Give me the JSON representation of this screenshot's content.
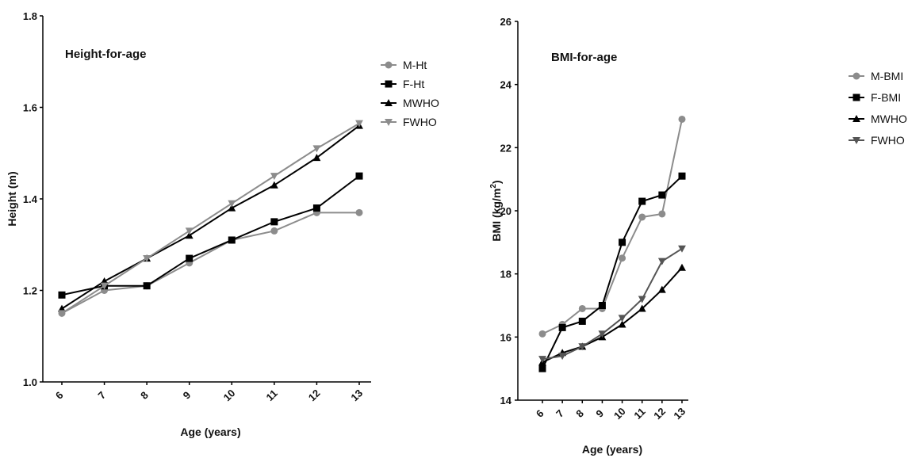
{
  "chart_data": [
    {
      "type": "line",
      "title": "Height-for-age",
      "xlabel": "Age (years)",
      "ylabel": "Height (m)",
      "ylim": [
        1.0,
        1.8
      ],
      "y_ticks": [
        "1.0",
        "1.2",
        "1.4",
        "1.6",
        "1.8"
      ],
      "categories": [
        "6",
        "7",
        "8",
        "9",
        "10",
        "11",
        "12",
        "13"
      ],
      "legend_position": "top-right",
      "series": [
        {
          "name": "M-Ht",
          "marker": "circle",
          "color": "#8c8c8c",
          "values": [
            1.15,
            1.2,
            1.21,
            1.26,
            1.31,
            1.33,
            1.37,
            1.37
          ]
        },
        {
          "name": "F-Ht",
          "marker": "square",
          "color": "#000000",
          "values": [
            1.19,
            1.21,
            1.21,
            1.27,
            1.31,
            1.35,
            1.38,
            1.45
          ]
        },
        {
          "name": "MWHO",
          "marker": "triangle-up",
          "color": "#000000",
          "values": [
            1.16,
            1.22,
            1.27,
            1.32,
            1.38,
            1.43,
            1.49,
            1.56
          ]
        },
        {
          "name": "FWHO",
          "marker": "triangle-down",
          "color": "#8c8c8c",
          "values": [
            1.15,
            1.21,
            1.27,
            1.33,
            1.39,
            1.45,
            1.51,
            1.565
          ]
        }
      ]
    },
    {
      "type": "line",
      "title": "BMI-for-age",
      "xlabel": "Age (years)",
      "ylabel": "BMI (kg/m",
      "ylabel_superscript": "2",
      "ylabel_suffix": ")",
      "ylim": [
        14,
        26
      ],
      "y_ticks": [
        "14",
        "16",
        "18",
        "20",
        "22",
        "24",
        "26"
      ],
      "categories": [
        "6",
        "7",
        "8",
        "9",
        "10",
        "11",
        "12",
        "13"
      ],
      "legend_position": "top-right",
      "series": [
        {
          "name": "M-BMI",
          "marker": "circle",
          "color": "#8c8c8c",
          "values": [
            16.1,
            16.4,
            16.9,
            16.9,
            18.5,
            19.8,
            19.9,
            22.9
          ]
        },
        {
          "name": "F-BMI",
          "marker": "square",
          "color": "#000000",
          "values": [
            15.0,
            16.3,
            16.5,
            17.0,
            19.0,
            20.3,
            20.5,
            21.1
          ]
        },
        {
          "name": "MWHO",
          "marker": "triangle-up",
          "color": "#000000",
          "values": [
            15.2,
            15.5,
            15.7,
            16.0,
            16.4,
            16.9,
            17.5,
            18.2
          ]
        },
        {
          "name": "FWHO",
          "marker": "triangle-down",
          "color": "#555555",
          "values": [
            15.3,
            15.4,
            15.7,
            16.1,
            16.6,
            17.2,
            18.4,
            18.8
          ]
        }
      ]
    }
  ]
}
